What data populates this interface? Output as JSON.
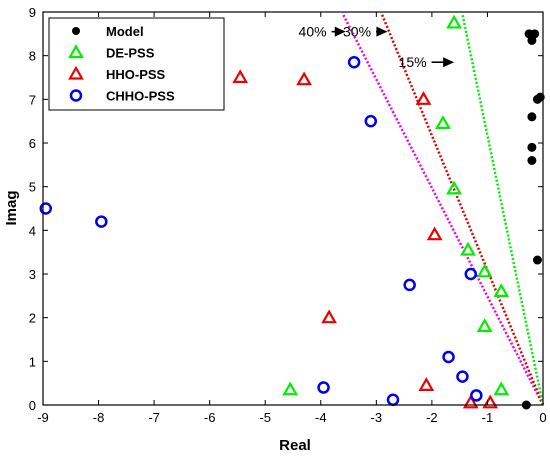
{
  "chart_data": {
    "type": "scatter",
    "xlabel": "Real",
    "ylabel": "Imag",
    "xlim": [
      -9,
      0
    ],
    "ylim": [
      0,
      9
    ],
    "xticks": [
      -9,
      -8,
      -7,
      -6,
      -5,
      -4,
      -3,
      -2,
      -1,
      0
    ],
    "yticks": [
      0,
      1,
      2,
      3,
      4,
      5,
      6,
      7,
      8,
      9
    ],
    "grid": false,
    "legend_position": "top-left",
    "series": [
      {
        "name": "Model",
        "marker": "filled-circle",
        "color": "#000000",
        "points": [
          [
            -0.25,
            8.5
          ],
          [
            -0.2,
            8.35
          ],
          [
            -0.15,
            8.5
          ],
          [
            -0.05,
            7.05
          ],
          [
            -0.1,
            7.0
          ],
          [
            -0.2,
            6.6
          ],
          [
            -0.2,
            5.9
          ],
          [
            -0.2,
            5.6
          ],
          [
            -0.1,
            3.32
          ],
          [
            -0.3,
            0.0
          ]
        ]
      },
      {
        "name": "DE-PSS",
        "marker": "open-triangle",
        "color": "#00ee00",
        "points": [
          [
            -1.6,
            8.75
          ],
          [
            -1.8,
            6.45
          ],
          [
            -1.6,
            4.95
          ],
          [
            -1.35,
            3.55
          ],
          [
            -1.05,
            3.05
          ],
          [
            -0.75,
            2.6
          ],
          [
            -1.05,
            1.8
          ],
          [
            -0.75,
            0.35
          ],
          [
            -4.55,
            0.35
          ]
        ]
      },
      {
        "name": "HHO-PSS",
        "marker": "open-triangle",
        "color": "#ee0000",
        "points": [
          [
            -5.45,
            7.5
          ],
          [
            -4.3,
            7.45
          ],
          [
            -2.15,
            7.0
          ],
          [
            -1.95,
            3.9
          ],
          [
            -3.85,
            2.0
          ],
          [
            -2.1,
            0.45
          ],
          [
            -1.3,
            0.05
          ],
          [
            -0.95,
            0.05
          ]
        ]
      },
      {
        "name": "CHHO-PSS",
        "marker": "open-circle",
        "color": "#0000ee",
        "points": [
          [
            -3.4,
            7.85
          ],
          [
            -3.1,
            6.5
          ],
          [
            -8.95,
            4.5
          ],
          [
            -7.95,
            4.2
          ],
          [
            -2.4,
            2.75
          ],
          [
            -1.3,
            3.0
          ],
          [
            -1.7,
            1.1
          ],
          [
            -1.45,
            0.65
          ],
          [
            -1.2,
            0.22
          ],
          [
            -3.95,
            0.4
          ],
          [
            -2.7,
            0.12
          ]
        ]
      }
    ],
    "damping_lines": [
      {
        "label": "40%",
        "color": "#ee00ee",
        "end": [
          -3.6,
          8.95
        ],
        "arrow_tip": [
          -3.55,
          8.55
        ],
        "label_anchor": [
          -4.4,
          8.55
        ]
      },
      {
        "label": "30%",
        "color": "#dd0000",
        "end": [
          -2.9,
          8.95
        ],
        "arrow_tip": [
          -2.8,
          8.55
        ],
        "label_anchor": [
          -3.6,
          8.55
        ]
      },
      {
        "label": "15%",
        "color": "#00ee00",
        "end": [
          -1.45,
          8.95
        ],
        "arrow_tip": [
          -1.6,
          7.85
        ],
        "label_anchor": [
          -2.6,
          7.85
        ]
      }
    ]
  }
}
